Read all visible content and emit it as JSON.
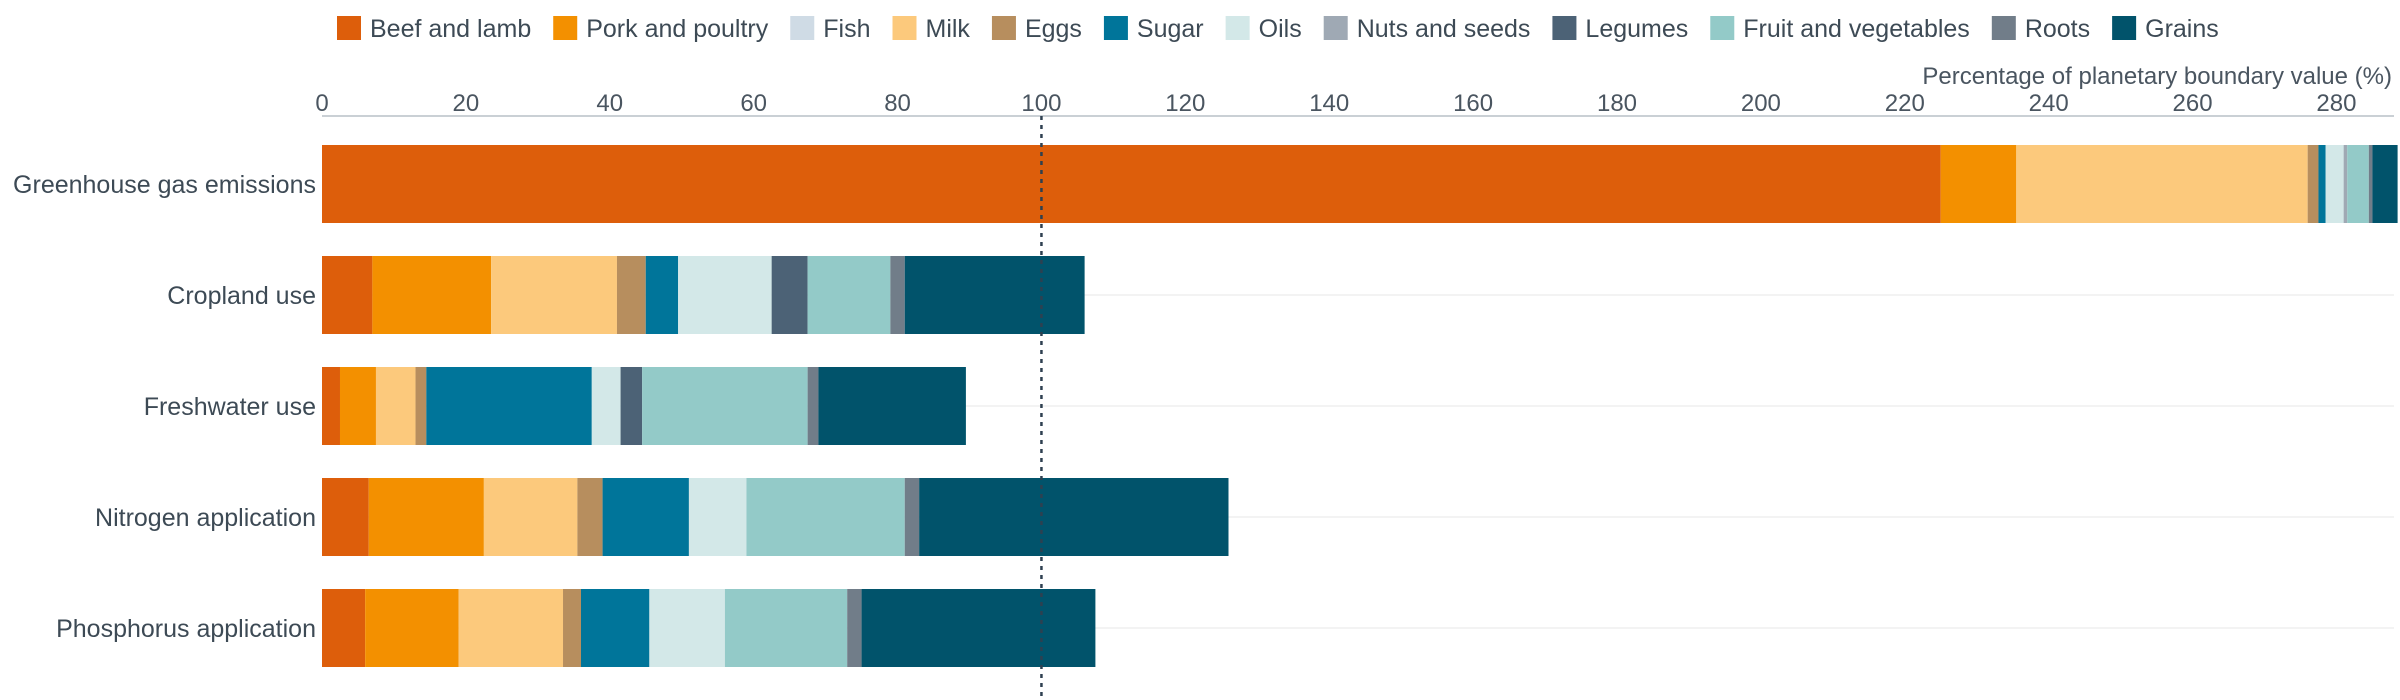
{
  "chart_data": {
    "type": "bar",
    "orientation": "horizontal",
    "stacked": true,
    "xlabel": "Percentage of planetary boundary value (%)",
    "xlim": [
      0,
      288
    ],
    "x_ticks": [
      "0",
      "20",
      "40",
      "60",
      "80",
      "100",
      "120",
      "140",
      "160",
      "180",
      "200",
      "220",
      "240",
      "260",
      "280"
    ],
    "x_tick_values": [
      0,
      20,
      40,
      60,
      80,
      100,
      120,
      140,
      160,
      180,
      200,
      220,
      240,
      260,
      280
    ],
    "reference_line": 100,
    "legend_position": "top",
    "gridlines": "horizontal",
    "categories": [
      "Greenhouse gas emissions",
      "Cropland use",
      "Freshwater use",
      "Nitrogen application",
      "Phosphorus application"
    ],
    "series": [
      {
        "name": "Beef and lamb",
        "color": "#dd5e0b",
        "values": [
          225,
          7,
          2.5,
          6.5,
          6
        ]
      },
      {
        "name": "Pork and poultry",
        "color": "#f39000",
        "values": [
          10.5,
          16.5,
          5,
          16,
          13
        ]
      },
      {
        "name": "Fish",
        "color": "#cfdbe5",
        "values": [
          0,
          0,
          0,
          0,
          0
        ]
      },
      {
        "name": "Milk",
        "color": "#fcc97c",
        "values": [
          40.5,
          17.5,
          5.5,
          13,
          14.5
        ]
      },
      {
        "name": "Eggs",
        "color": "#b78e5e",
        "values": [
          1.5,
          4,
          1.5,
          3.5,
          2.5
        ]
      },
      {
        "name": "Sugar",
        "color": "#00759a",
        "values": [
          1,
          4.5,
          23,
          12,
          9.5
        ]
      },
      {
        "name": "Oils",
        "color": "#d3e8e8",
        "values": [
          2.5,
          13,
          4,
          8,
          10.5
        ]
      },
      {
        "name": "Nuts and seeds",
        "color": "#9fa9b4",
        "values": [
          0.5,
          0,
          0,
          0,
          0
        ]
      },
      {
        "name": "Legumes",
        "color": "#4c6276",
        "values": [
          0,
          5,
          3,
          0,
          0
        ]
      },
      {
        "name": "Fruit and vegetables",
        "color": "#93cac8",
        "values": [
          3,
          11.5,
          23,
          22,
          17
        ]
      },
      {
        "name": "Roots",
        "color": "#717d89",
        "values": [
          0.5,
          2,
          1.5,
          2,
          2
        ]
      },
      {
        "name": "Grains",
        "color": "#01536b",
        "values": [
          3.5,
          25,
          20.5,
          43,
          32.5
        ]
      }
    ]
  }
}
